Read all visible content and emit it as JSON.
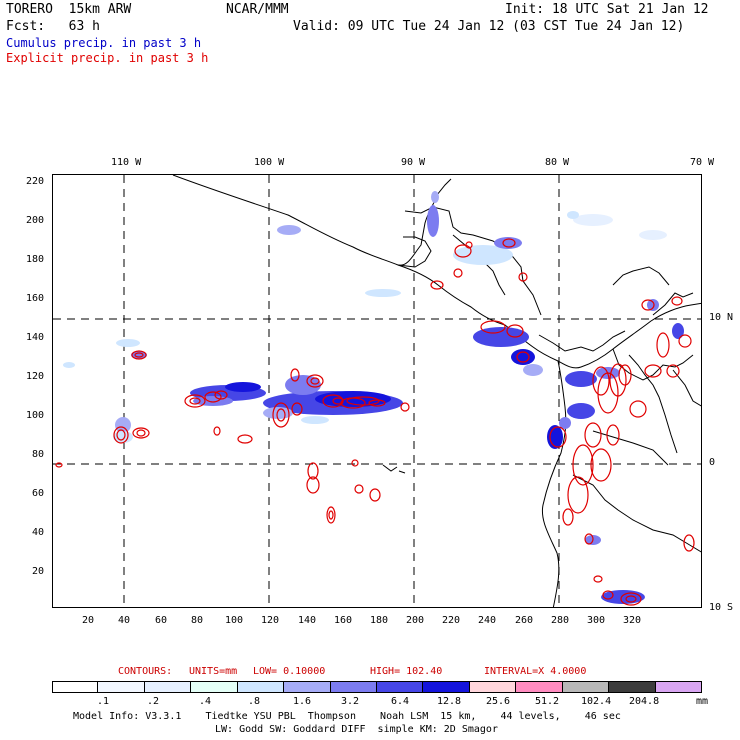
{
  "header": {
    "model": "TORERO  15km ARW",
    "org": "NCAR/MMM",
    "init": "Init: 18 UTC Sat 21 Jan 12",
    "fcst": "Fcst:   63 h",
    "valid": "Valid: 09 UTC Tue 24 Jan 12 (03 CST Tue 24 Jan 12)",
    "legend_cumulus": "Cumulus precip. in past 3 h",
    "legend_explicit": "Explicit precip. in past 3 h"
  },
  "colors": {
    "cumulus": "#0000c8",
    "explicit": "#e00000",
    "contour_text": "#cc0000"
  },
  "top_axis": [
    "110 W",
    "100 W",
    "90 W",
    "80 W",
    "70 W"
  ],
  "right_axis": [
    "10 N",
    "0",
    "10 S"
  ],
  "left_axis": [
    "220",
    "200",
    "180",
    "160",
    "140",
    "120",
    "100",
    "80",
    "60",
    "40",
    "20"
  ],
  "bottom_axis": [
    "20",
    "40",
    "60",
    "80",
    "100",
    "120",
    "140",
    "160",
    "180",
    "200",
    "220",
    "240",
    "260",
    "280",
    "300",
    "320"
  ],
  "contour_info": {
    "contours": "CONTOURS:",
    "units": "UNITS=mm",
    "low": "LOW= 0.10000",
    "high": "HIGH= 102.40",
    "interval": "INTERVAL=X 4.0000"
  },
  "colorbar": {
    "colors": [
      "#ffffff",
      "#f2f7ff",
      "#e6f0ff",
      "#e4fff7",
      "#cfe6ff",
      "#a6acf6",
      "#7c7cf0",
      "#4646e6",
      "#1414dc",
      "#ffd6dc",
      "#ff8cc0",
      "#b8b8b8",
      "#3c3c3c",
      "#d9a6f2"
    ],
    "labels": [
      ".1",
      ".2",
      ".4",
      ".8",
      "1.6",
      "3.2",
      "6.4",
      "12.8",
      "25.6",
      "51.2",
      "102.4",
      "204.8"
    ],
    "unit": "mm"
  },
  "footer": {
    "line1": "Model Info: V3.3.1    Tiedtke YSU PBL  Thompson    Noah LSM  15 km,    44 levels,    46 sec",
    "line2": "LW: Godd SW: Goddard DIFF  simple KM: 2D Smagor"
  }
}
